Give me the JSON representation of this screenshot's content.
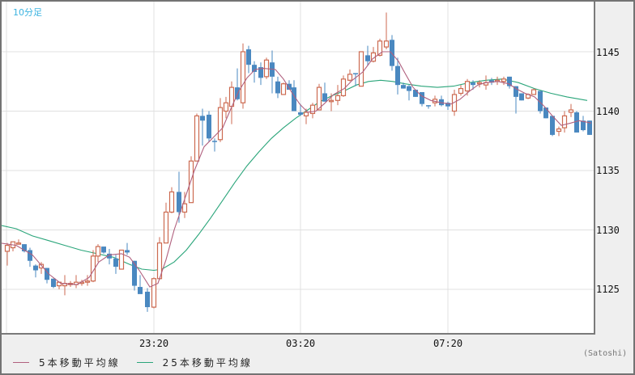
{
  "header": {
    "period_label": "10分足"
  },
  "y_axis": {
    "ticks": [
      {
        "label": "1145",
        "value": 1145
      },
      {
        "label": "1140",
        "value": 1140
      },
      {
        "label": "1135",
        "value": 1135
      },
      {
        "label": "1130",
        "value": 1130
      },
      {
        "label": "1125",
        "value": 1125
      }
    ]
  },
  "x_axis": {
    "ticks": [
      {
        "label": "23:20",
        "x": 190
      },
      {
        "label": "03:20",
        "x": 371
      },
      {
        "label": "07:20",
        "x": 553
      }
    ]
  },
  "legend": {
    "ma5": {
      "label": "5本移動平均線",
      "color": "#b0607e"
    },
    "ma25": {
      "label": "25本移動平均線",
      "color": "#2aa57a"
    }
  },
  "credit": "(Satoshi)",
  "colors": {
    "up": "#cc6a50",
    "down": "#4a88c0",
    "grid": "#e0e0e0"
  },
  "chart_data": {
    "type": "candlestick",
    "title": "10分足",
    "xlabel": "",
    "ylabel": "",
    "ylim": [
      1122.2,
      1149.0
    ],
    "grid": true,
    "legend_position": "bottom-left",
    "x_ticks": [
      "23:20",
      "03:20",
      "07:20"
    ],
    "y_ticks": [
      1125,
      1130,
      1135,
      1140,
      1145
    ],
    "candles": [
      {
        "x": 9,
        "o": 1128.2,
        "h": 1128.9,
        "l": 1127.0,
        "c": 1128.7
      },
      {
        "x": 16,
        "o": 1128.5,
        "h": 1128.9,
        "l": 1128.2,
        "c": 1129.0
      },
      {
        "x": 23,
        "o": 1128.9,
        "h": 1129.2,
        "l": 1128.8,
        "c": 1128.9
      },
      {
        "x": 30,
        "o": 1128.8,
        "h": 1128.8,
        "l": 1128.1,
        "c": 1128.2
      },
      {
        "x": 37,
        "o": 1128.3,
        "h": 1128.5,
        "l": 1126.9,
        "c": 1127.4
      },
      {
        "x": 44,
        "o": 1127.0,
        "h": 1127.1,
        "l": 1126.0,
        "c": 1126.6
      },
      {
        "x": 51,
        "o": 1126.8,
        "h": 1127.3,
        "l": 1126.3,
        "c": 1127.1
      },
      {
        "x": 58,
        "o": 1126.8,
        "h": 1126.8,
        "l": 1125.5,
        "c": 1125.8
      },
      {
        "x": 66,
        "o": 1125.9,
        "h": 1125.9,
        "l": 1125.1,
        "c": 1125.2
      },
      {
        "x": 73,
        "o": 1125.3,
        "h": 1125.6,
        "l": 1125.0,
        "c": 1125.6
      },
      {
        "x": 80,
        "o": 1125.3,
        "h": 1126.2,
        "l": 1124.5,
        "c": 1125.5
      },
      {
        "x": 87,
        "o": 1125.4,
        "h": 1125.7,
        "l": 1125.2,
        "c": 1125.5
      },
      {
        "x": 94,
        "o": 1125.4,
        "h": 1126.2,
        "l": 1125.1,
        "c": 1125.6
      },
      {
        "x": 101,
        "o": 1125.5,
        "h": 1125.8,
        "l": 1125.3,
        "c": 1125.6
      },
      {
        "x": 108,
        "o": 1125.6,
        "h": 1126.2,
        "l": 1125.3,
        "c": 1125.7
      },
      {
        "x": 115,
        "o": 1125.7,
        "h": 1128.3,
        "l": 1125.6,
        "c": 1127.8
      },
      {
        "x": 121,
        "o": 1127.8,
        "h": 1128.8,
        "l": 1127.3,
        "c": 1128.6
      },
      {
        "x": 128,
        "o": 1128.6,
        "h": 1128.6,
        "l": 1128.0,
        "c": 1128.1
      },
      {
        "x": 135,
        "o": 1128.0,
        "h": 1128.4,
        "l": 1127.1,
        "c": 1127.6
      },
      {
        "x": 143,
        "o": 1127.6,
        "h": 1127.9,
        "l": 1126.3,
        "c": 1126.9
      },
      {
        "x": 150,
        "o": 1126.7,
        "h": 1128.3,
        "l": 1126.7,
        "c": 1128.3
      },
      {
        "x": 157,
        "o": 1128.3,
        "h": 1128.9,
        "l": 1127.9,
        "c": 1128.1
      },
      {
        "x": 166,
        "o": 1127.4,
        "h": 1127.4,
        "l": 1124.9,
        "c": 1125.3
      },
      {
        "x": 173,
        "o": 1125.2,
        "h": 1126.2,
        "l": 1124.8,
        "c": 1124.6
      },
      {
        "x": 182,
        "o": 1124.8,
        "h": 1125.1,
        "l": 1123.1,
        "c": 1123.5
      },
      {
        "x": 190,
        "o": 1123.5,
        "h": 1126.0,
        "l": 1123.4,
        "c": 1125.9
      },
      {
        "x": 197,
        "o": 1125.9,
        "h": 1129.4,
        "l": 1125.8,
        "c": 1128.9
      },
      {
        "x": 205,
        "o": 1128.9,
        "h": 1132.3,
        "l": 1128.9,
        "c": 1131.5
      },
      {
        "x": 212,
        "o": 1131.5,
        "h": 1133.6,
        "l": 1131.4,
        "c": 1133.2
      },
      {
        "x": 221,
        "o": 1133.2,
        "h": 1134.9,
        "l": 1130.6,
        "c": 1131.5
      },
      {
        "x": 228,
        "o": 1131.5,
        "h": 1133.2,
        "l": 1131.0,
        "c": 1132.2
      },
      {
        "x": 236,
        "o": 1132.3,
        "h": 1136.2,
        "l": 1132.3,
        "c": 1135.8
      },
      {
        "x": 243,
        "o": 1135.8,
        "h": 1139.8,
        "l": 1135.8,
        "c": 1139.6
      },
      {
        "x": 250,
        "o": 1139.6,
        "h": 1140.2,
        "l": 1137.1,
        "c": 1139.2
      },
      {
        "x": 258,
        "o": 1139.7,
        "h": 1140.0,
        "l": 1137.4,
        "c": 1137.7
      },
      {
        "x": 265,
        "o": 1137.5,
        "h": 1137.7,
        "l": 1136.6,
        "c": 1137.4
      },
      {
        "x": 272,
        "o": 1137.6,
        "h": 1141.1,
        "l": 1137.4,
        "c": 1140.3
      },
      {
        "x": 279,
        "o": 1140.0,
        "h": 1141.2,
        "l": 1139.4,
        "c": 1140.7
      },
      {
        "x": 286,
        "o": 1140.4,
        "h": 1142.5,
        "l": 1138.9,
        "c": 1142.0
      },
      {
        "x": 293,
        "o": 1142.0,
        "h": 1143.6,
        "l": 1140.9,
        "c": 1141.0
      },
      {
        "x": 300,
        "o": 1140.7,
        "h": 1145.7,
        "l": 1140.2,
        "c": 1145.0
      },
      {
        "x": 307,
        "o": 1145.2,
        "h": 1145.5,
        "l": 1143.2,
        "c": 1143.9
      },
      {
        "x": 314,
        "o": 1143.9,
        "h": 1144.2,
        "l": 1142.4,
        "c": 1143.3
      },
      {
        "x": 322,
        "o": 1143.7,
        "h": 1144.1,
        "l": 1142.2,
        "c": 1142.8
      },
      {
        "x": 329,
        "o": 1142.9,
        "h": 1144.5,
        "l": 1142.7,
        "c": 1144.3
      },
      {
        "x": 336,
        "o": 1144.1,
        "h": 1145.1,
        "l": 1141.5,
        "c": 1142.9
      },
      {
        "x": 343,
        "o": 1142.5,
        "h": 1142.9,
        "l": 1141.1,
        "c": 1141.5
      },
      {
        "x": 350,
        "o": 1141.4,
        "h": 1142.4,
        "l": 1141.4,
        "c": 1142.3
      },
      {
        "x": 357,
        "o": 1142.3,
        "h": 1142.6,
        "l": 1141.8,
        "c": 1141.8
      },
      {
        "x": 363,
        "o": 1142.0,
        "h": 1142.6,
        "l": 1140.0,
        "c": 1140.0
      },
      {
        "x": 371,
        "o": 1139.9,
        "h": 1140.6,
        "l": 1139.6,
        "c": 1139.7
      },
      {
        "x": 378,
        "o": 1139.6,
        "h": 1140.2,
        "l": 1138.9,
        "c": 1139.9
      },
      {
        "x": 386,
        "o": 1139.8,
        "h": 1140.7,
        "l": 1139.4,
        "c": 1140.5
      },
      {
        "x": 394,
        "o": 1140.1,
        "h": 1142.3,
        "l": 1140.1,
        "c": 1142.0
      },
      {
        "x": 401,
        "o": 1141.5,
        "h": 1142.4,
        "l": 1140.8,
        "c": 1140.8
      },
      {
        "x": 409,
        "o": 1140.8,
        "h": 1141.5,
        "l": 1140.0,
        "c": 1140.9
      },
      {
        "x": 417,
        "o": 1140.9,
        "h": 1142.2,
        "l": 1140.5,
        "c": 1141.3
      },
      {
        "x": 424,
        "o": 1141.3,
        "h": 1143.0,
        "l": 1141.2,
        "c": 1142.7
      },
      {
        "x": 432,
        "o": 1142.6,
        "h": 1143.5,
        "l": 1142.5,
        "c": 1143.1
      },
      {
        "x": 439,
        "o": 1143.2,
        "h": 1143.2,
        "l": 1142.1,
        "c": 1143.1
      },
      {
        "x": 446,
        "o": 1142.1,
        "h": 1145.0,
        "l": 1142.1,
        "c": 1145.0
      },
      {
        "x": 454,
        "o": 1144.7,
        "h": 1145.5,
        "l": 1143.8,
        "c": 1144.2
      },
      {
        "x": 461,
        "o": 1144.2,
        "h": 1145.4,
        "l": 1144.1,
        "c": 1144.9
      },
      {
        "x": 469,
        "o": 1144.7,
        "h": 1146.1,
        "l": 1144.6,
        "c": 1145.9
      },
      {
        "x": 477,
        "o": 1145.4,
        "h": 1148.3,
        "l": 1145.2,
        "c": 1145.9
      },
      {
        "x": 484,
        "o": 1146.0,
        "h": 1146.4,
        "l": 1143.4,
        "c": 1143.8
      },
      {
        "x": 491,
        "o": 1143.8,
        "h": 1144.5,
        "l": 1141.4,
        "c": 1142.2
      },
      {
        "x": 498,
        "o": 1142.2,
        "h": 1142.4,
        "l": 1141.9,
        "c": 1141.9
      },
      {
        "x": 505,
        "o": 1142.1,
        "h": 1142.2,
        "l": 1140.9,
        "c": 1141.7
      },
      {
        "x": 513,
        "o": 1141.8,
        "h": 1141.8,
        "l": 1141.2,
        "c": 1141.2
      },
      {
        "x": 521,
        "o": 1141.6,
        "h": 1141.6,
        "l": 1140.4,
        "c": 1140.6
      },
      {
        "x": 529,
        "o": 1140.5,
        "h": 1140.5,
        "l": 1140.2,
        "c": 1140.4
      },
      {
        "x": 537,
        "o": 1140.7,
        "h": 1141.3,
        "l": 1140.4,
        "c": 1141.0
      },
      {
        "x": 545,
        "o": 1141.0,
        "h": 1141.3,
        "l": 1140.4,
        "c": 1140.5
      },
      {
        "x": 553,
        "o": 1140.7,
        "h": 1140.8,
        "l": 1140.1,
        "c": 1140.4
      },
      {
        "x": 561,
        "o": 1140.0,
        "h": 1141.8,
        "l": 1139.6,
        "c": 1141.4
      },
      {
        "x": 569,
        "o": 1141.5,
        "h": 1142.2,
        "l": 1141.3,
        "c": 1141.9
      },
      {
        "x": 577,
        "o": 1141.7,
        "h": 1142.7,
        "l": 1141.3,
        "c": 1142.5
      },
      {
        "x": 584,
        "o": 1142.4,
        "h": 1142.6,
        "l": 1141.8,
        "c": 1142.2
      },
      {
        "x": 592,
        "o": 1142.4,
        "h": 1142.6,
        "l": 1142.0,
        "c": 1142.4
      },
      {
        "x": 600,
        "o": 1142.2,
        "h": 1143.0,
        "l": 1141.8,
        "c": 1142.4
      },
      {
        "x": 607,
        "o": 1142.6,
        "h": 1142.8,
        "l": 1142.2,
        "c": 1142.4
      },
      {
        "x": 614,
        "o": 1142.5,
        "h": 1142.9,
        "l": 1142.2,
        "c": 1142.6
      },
      {
        "x": 622,
        "o": 1142.5,
        "h": 1142.9,
        "l": 1142.2,
        "c": 1142.7
      },
      {
        "x": 629,
        "o": 1142.9,
        "h": 1142.9,
        "l": 1141.9,
        "c": 1142.1
      },
      {
        "x": 637,
        "o": 1142.1,
        "h": 1142.1,
        "l": 1139.8,
        "c": 1141.2
      },
      {
        "x": 644,
        "o": 1141.5,
        "h": 1141.5,
        "l": 1140.9,
        "c": 1140.9
      },
      {
        "x": 652,
        "o": 1141.1,
        "h": 1141.5,
        "l": 1141.0,
        "c": 1141.4
      },
      {
        "x": 659,
        "o": 1141.4,
        "h": 1141.9,
        "l": 1141.4,
        "c": 1141.8
      },
      {
        "x": 667,
        "o": 1141.7,
        "h": 1141.7,
        "l": 1139.8,
        "c": 1140.0
      },
      {
        "x": 674,
        "o": 1140.3,
        "h": 1140.3,
        "l": 1139.4,
        "c": 1139.4
      },
      {
        "x": 682,
        "o": 1139.6,
        "h": 1139.6,
        "l": 1137.9,
        "c": 1138.0
      },
      {
        "x": 690,
        "o": 1138.3,
        "h": 1138.7,
        "l": 1137.9,
        "c": 1138.5
      },
      {
        "x": 697,
        "o": 1138.6,
        "h": 1140.0,
        "l": 1138.2,
        "c": 1139.6
      },
      {
        "x": 705,
        "o": 1139.9,
        "h": 1140.6,
        "l": 1139.5,
        "c": 1140.1
      },
      {
        "x": 712,
        "o": 1139.9,
        "h": 1140.0,
        "l": 1138.2,
        "c": 1138.2
      },
      {
        "x": 720,
        "o": 1139.2,
        "h": 1139.6,
        "l": 1138.3,
        "c": 1138.4
      },
      {
        "x": 728,
        "o": 1139.2,
        "h": 1139.2,
        "l": 1138.0,
        "c": 1138.0
      }
    ],
    "series": [
      {
        "name": "5本移動平均線",
        "color": "#b0607e",
        "points": [
          [
            0,
            1128.9
          ],
          [
            20,
            1128.7
          ],
          [
            40,
            1127.9
          ],
          [
            60,
            1126.3
          ],
          [
            75,
            1125.5
          ],
          [
            95,
            1125.4
          ],
          [
            110,
            1126.0
          ],
          [
            122,
            1127.3
          ],
          [
            135,
            1127.9
          ],
          [
            150,
            1128.0
          ],
          [
            160,
            1127.7
          ],
          [
            172,
            1126.6
          ],
          [
            185,
            1125.2
          ],
          [
            195,
            1125.5
          ],
          [
            205,
            1127.5
          ],
          [
            215,
            1130.0
          ],
          [
            228,
            1132.6
          ],
          [
            240,
            1135.0
          ],
          [
            252,
            1137.0
          ],
          [
            265,
            1137.9
          ],
          [
            275,
            1138.6
          ],
          [
            285,
            1140.2
          ],
          [
            295,
            1141.7
          ],
          [
            305,
            1142.8
          ],
          [
            315,
            1143.5
          ],
          [
            325,
            1143.6
          ],
          [
            340,
            1143.5
          ],
          [
            350,
            1142.7
          ],
          [
            360,
            1141.6
          ],
          [
            370,
            1140.6
          ],
          [
            380,
            1139.9
          ],
          [
            390,
            1140.0
          ],
          [
            400,
            1140.6
          ],
          [
            412,
            1141.4
          ],
          [
            425,
            1141.9
          ],
          [
            435,
            1142.6
          ],
          [
            448,
            1143.3
          ],
          [
            460,
            1144.4
          ],
          [
            472,
            1145.0
          ],
          [
            482,
            1145.0
          ],
          [
            492,
            1144.2
          ],
          [
            500,
            1143.2
          ],
          [
            510,
            1142.0
          ],
          [
            520,
            1141.3
          ],
          [
            532,
            1140.9
          ],
          [
            545,
            1140.7
          ],
          [
            557,
            1140.6
          ],
          [
            568,
            1141.0
          ],
          [
            580,
            1141.7
          ],
          [
            590,
            1142.2
          ],
          [
            600,
            1142.4
          ],
          [
            615,
            1142.5
          ],
          [
            628,
            1142.3
          ],
          [
            637,
            1141.9
          ],
          [
            648,
            1141.5
          ],
          [
            660,
            1141.2
          ],
          [
            672,
            1140.4
          ],
          [
            682,
            1139.6
          ],
          [
            693,
            1138.8
          ],
          [
            705,
            1139.0
          ],
          [
            715,
            1139.2
          ],
          [
            730,
            1139.0
          ]
        ]
      },
      {
        "name": "25本移動平均線",
        "color": "#2aa57a",
        "points": [
          [
            0,
            1130.4
          ],
          [
            20,
            1130.1
          ],
          [
            40,
            1129.5
          ],
          [
            60,
            1129.1
          ],
          [
            80,
            1128.7
          ],
          [
            100,
            1128.3
          ],
          [
            120,
            1128.0
          ],
          [
            140,
            1127.7
          ],
          [
            160,
            1127.1
          ],
          [
            175,
            1126.7
          ],
          [
            190,
            1126.6
          ],
          [
            200,
            1126.7
          ],
          [
            215,
            1127.3
          ],
          [
            230,
            1128.3
          ],
          [
            245,
            1129.6
          ],
          [
            260,
            1131.0
          ],
          [
            275,
            1132.5
          ],
          [
            290,
            1134.0
          ],
          [
            305,
            1135.4
          ],
          [
            320,
            1136.6
          ],
          [
            335,
            1137.7
          ],
          [
            350,
            1138.6
          ],
          [
            365,
            1139.4
          ],
          [
            380,
            1140.1
          ],
          [
            395,
            1140.8
          ],
          [
            410,
            1141.3
          ],
          [
            425,
            1141.7
          ],
          [
            440,
            1142.2
          ],
          [
            455,
            1142.5
          ],
          [
            470,
            1142.6
          ],
          [
            485,
            1142.5
          ],
          [
            500,
            1142.3
          ],
          [
            520,
            1142.1
          ],
          [
            540,
            1142.0
          ],
          [
            560,
            1142.1
          ],
          [
            580,
            1142.4
          ],
          [
            600,
            1142.6
          ],
          [
            620,
            1142.7
          ],
          [
            640,
            1142.4
          ],
          [
            660,
            1141.9
          ],
          [
            680,
            1141.5
          ],
          [
            700,
            1141.2
          ],
          [
            725,
            1140.9
          ]
        ]
      }
    ]
  }
}
